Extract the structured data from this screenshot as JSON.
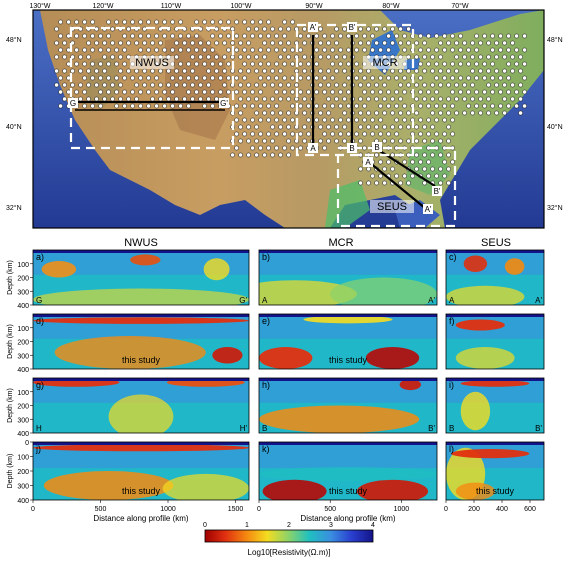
{
  "map": {
    "top_lon_labels": [
      "130°W",
      "120°W",
      "110°W",
      "100°W",
      "90°W",
      "80°W",
      "70°W"
    ],
    "lat_labels": [
      "48°N",
      "40°N",
      "32°N"
    ],
    "regions": [
      {
        "id": "nwus",
        "label": "NWUS"
      },
      {
        "id": "mcr",
        "label": "MCR"
      },
      {
        "id": "seus",
        "label": "SEUS"
      }
    ],
    "profile_labels": [
      "G",
      "G'",
      "A'",
      "A",
      "B'",
      "B",
      "A",
      "A'",
      "B",
      "B'"
    ]
  },
  "columns": [
    "NWUS",
    "MCR",
    "SEUS"
  ],
  "panels": [
    {
      "letter": "a)",
      "note": "",
      "end_left": "G",
      "end_right": "G'"
    },
    {
      "letter": "b)",
      "note": "",
      "end_left": "A",
      "end_right": "A'"
    },
    {
      "letter": "c)",
      "note": "",
      "end_left": "A",
      "end_right": "A'"
    },
    {
      "letter": "d)",
      "note": "this study",
      "end_left": "",
      "end_right": ""
    },
    {
      "letter": "e)",
      "note": "this study",
      "end_left": "",
      "end_right": ""
    },
    {
      "letter": "f)",
      "note": "",
      "end_left": "",
      "end_right": ""
    },
    {
      "letter": "g)",
      "note": "",
      "end_left": "H",
      "end_right": "H'"
    },
    {
      "letter": "h)",
      "note": "",
      "end_left": "B",
      "end_right": "B'"
    },
    {
      "letter": "i)",
      "note": "",
      "end_left": "B",
      "end_right": "B'"
    },
    {
      "letter": "j)",
      "note": "this study",
      "end_left": "",
      "end_right": ""
    },
    {
      "letter": "k)",
      "note": "this study",
      "end_left": "",
      "end_right": ""
    },
    {
      "letter": "l)",
      "note": "this study",
      "end_left": "",
      "end_right": ""
    }
  ],
  "y_axis": {
    "label": "Depth (km)",
    "ticks": [
      "0",
      "100",
      "200",
      "300",
      "400"
    ]
  },
  "x_axis": {
    "label": "Distance along profile (km)",
    "nwus_ticks": [
      "0",
      "500",
      "1000",
      "1500"
    ],
    "mcr_ticks": [
      "0",
      "500",
      "1000"
    ],
    "seus_ticks": [
      "0",
      "200",
      "400",
      "600"
    ]
  },
  "colorbar": {
    "ticks": [
      "0",
      "1",
      "2",
      "3",
      "4"
    ],
    "label": "Log10[Resistivity(Ω.m)]",
    "colors": [
      "#a00000",
      "#e03010",
      "#f58a10",
      "#f5dc20",
      "#8ad36a",
      "#20c0c0",
      "#3a8ee0",
      "#2a40d0",
      "#14148a"
    ]
  }
}
